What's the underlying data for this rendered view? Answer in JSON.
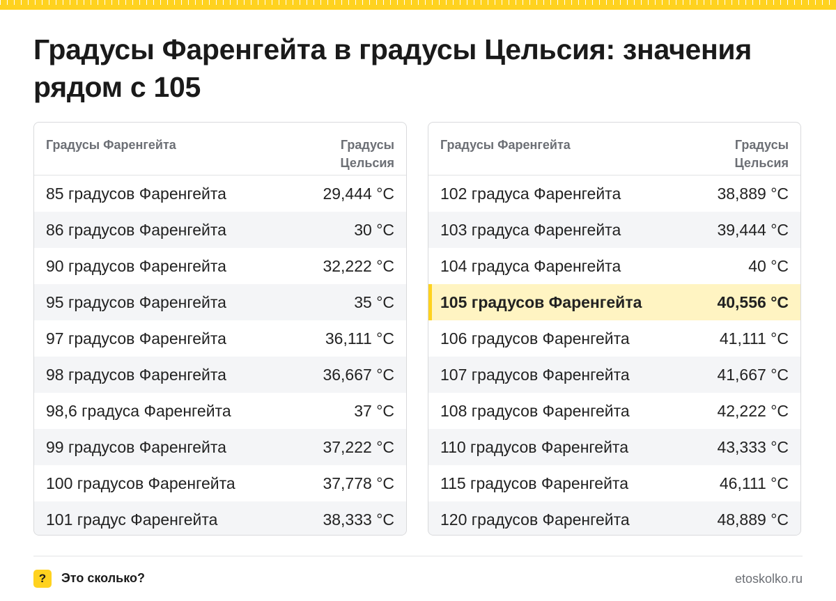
{
  "title": "Градусы Фаренгейта в градусы Цельсия: значения рядом с 105",
  "accent_color": "#ffd21f",
  "highlight_color": "#fff4c2",
  "tables": [
    {
      "header": {
        "col1": "Градусы Фаренгейта",
        "col2": "Градусы Цельсия"
      },
      "rows": [
        {
          "f": "85 градусов Фаренгейта",
          "c": "29,444 °C"
        },
        {
          "f": "86 градусов Фаренгейта",
          "c": "30 °C"
        },
        {
          "f": "90 градусов Фаренгейта",
          "c": "32,222 °C"
        },
        {
          "f": "95 градусов Фаренгейта",
          "c": "35 °C"
        },
        {
          "f": "97 градусов Фаренгейта",
          "c": "36,111 °C"
        },
        {
          "f": "98 градусов Фаренгейта",
          "c": "36,667 °C"
        },
        {
          "f": "98,6 градуса Фаренгейта",
          "c": "37 °C"
        },
        {
          "f": "99 градусов Фаренгейта",
          "c": "37,222 °C"
        },
        {
          "f": "100 градусов Фаренгейта",
          "c": "37,778 °C"
        },
        {
          "f": "101 градус Фаренгейта",
          "c": "38,333 °C"
        }
      ]
    },
    {
      "header": {
        "col1": "Градусы Фаренгейта",
        "col2": "Градусы Цельсия"
      },
      "rows": [
        {
          "f": "102 градуса Фаренгейта",
          "c": "38,889 °C"
        },
        {
          "f": "103 градуса Фаренгейта",
          "c": "39,444 °C"
        },
        {
          "f": "104 градуса Фаренгейта",
          "c": "40 °C"
        },
        {
          "f": "105 градусов Фаренгейта",
          "c": "40,556 °C",
          "highlighted": true
        },
        {
          "f": "106 градусов Фаренгейта",
          "c": "41,111 °C"
        },
        {
          "f": "107 градусов Фаренгейта",
          "c": "41,667 °C"
        },
        {
          "f": "108 градусов Фаренгейта",
          "c": "42,222 °C"
        },
        {
          "f": "110 градусов Фаренгейта",
          "c": "43,333 °C"
        },
        {
          "f": "115 градусов Фаренгейта",
          "c": "46,111 °C"
        },
        {
          "f": "120 градусов Фаренгейта",
          "c": "48,889 °C"
        }
      ]
    }
  ],
  "footer": {
    "logo_icon": "question-mark-icon",
    "logo_symbol": "?",
    "logo_text": "Это сколько?",
    "site": "etoskolko.ru"
  }
}
